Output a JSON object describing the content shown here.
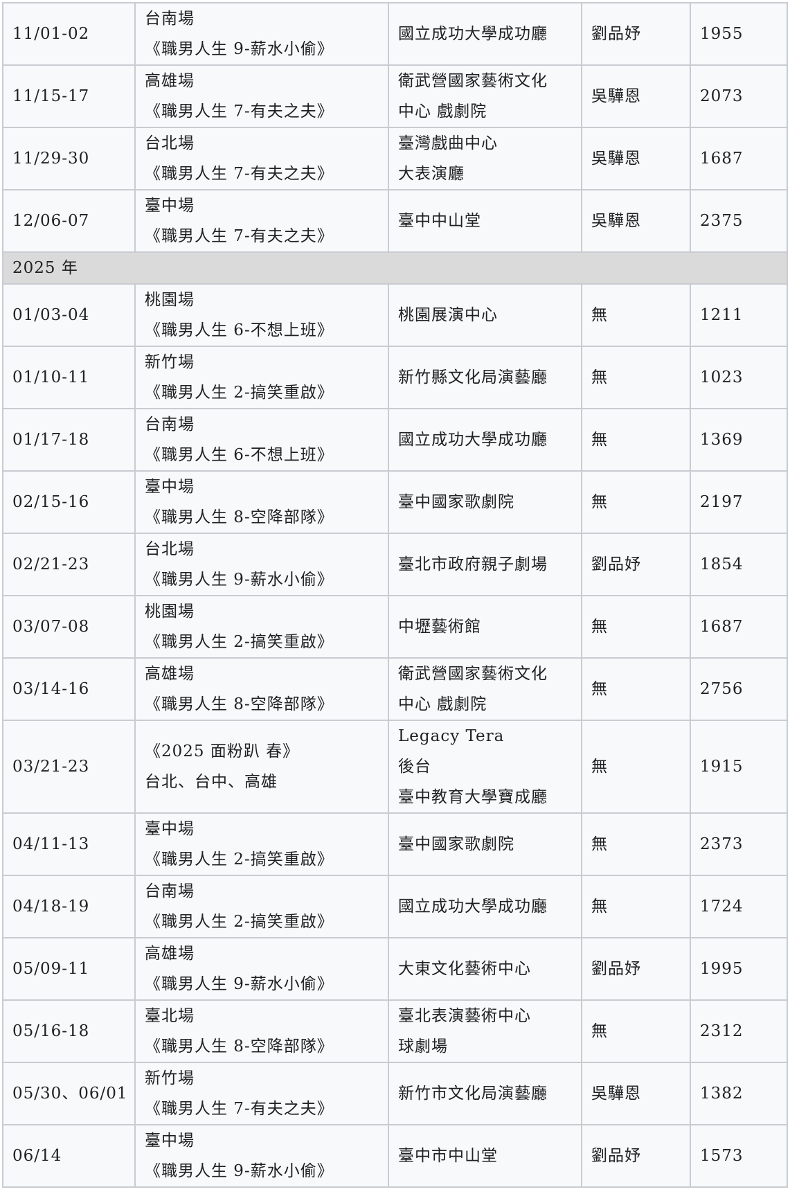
{
  "table": {
    "rows": [
      {
        "cells": [
          [
            "11/01-02"
          ],
          [
            "台南場",
            "《職男人生 9-薪水小偷》"
          ],
          [
            "國立成功大學成功廳"
          ],
          [
            "劉品妤"
          ],
          [
            1955
          ]
        ]
      },
      {
        "cells": [
          [
            "11/15-17"
          ],
          [
            "高雄場",
            "《職男人生 7-有夫之夫》"
          ],
          [
            "衛武營國家藝術文化",
            "中心 戲劇院"
          ],
          [
            "吳驊恩"
          ],
          [
            2073
          ]
        ]
      },
      {
        "cells": [
          [
            "11/29-30"
          ],
          [
            "台北場",
            "《職男人生 7-有夫之夫》"
          ],
          [
            "臺灣戲曲中心",
            "大表演廳"
          ],
          [
            "吳驊恩"
          ],
          [
            1687
          ]
        ]
      },
      {
        "cells": [
          [
            "12/06-07"
          ],
          [
            "臺中場",
            "《職男人生 7-有夫之夫》"
          ],
          [
            "臺中中山堂"
          ],
          [
            "吳驊恩"
          ],
          [
            2375
          ]
        ]
      },
      {
        "section": "2025 年"
      },
      {
        "cells": [
          [
            "01/03-04"
          ],
          [
            "桃園場",
            "《職男人生 6-不想上班》"
          ],
          [
            "桃園展演中心"
          ],
          [
            "無"
          ],
          [
            1211
          ]
        ]
      },
      {
        "cells": [
          [
            "01/10-11"
          ],
          [
            "新竹場",
            "《職男人生 2-搞笑重啟》"
          ],
          [
            "新竹縣文化局演藝廳"
          ],
          [
            "無"
          ],
          [
            1023
          ]
        ]
      },
      {
        "cells": [
          [
            "01/17-18"
          ],
          [
            "台南場",
            "《職男人生 6-不想上班》"
          ],
          [
            "國立成功大學成功廳"
          ],
          [
            "無"
          ],
          [
            1369
          ]
        ]
      },
      {
        "cells": [
          [
            "02/15-16"
          ],
          [
            "臺中場",
            "《職男人生 8-空降部隊》"
          ],
          [
            "臺中國家歌劇院"
          ],
          [
            "無"
          ],
          [
            2197
          ]
        ]
      },
      {
        "cells": [
          [
            "02/21-23"
          ],
          [
            "台北場",
            "《職男人生 9-薪水小偷》"
          ],
          [
            "臺北市政府親子劇場"
          ],
          [
            "劉品妤"
          ],
          [
            1854
          ]
        ]
      },
      {
        "cells": [
          [
            "03/07-08"
          ],
          [
            "桃園場",
            "《職男人生 2-搞笑重啟》"
          ],
          [
            "中壢藝術館"
          ],
          [
            "無"
          ],
          [
            1687
          ]
        ]
      },
      {
        "cells": [
          [
            "03/14-16"
          ],
          [
            "高雄場",
            "《職男人生 8-空降部隊》"
          ],
          [
            "衛武營國家藝術文化",
            "中心 戲劇院"
          ],
          [
            "無"
          ],
          [
            2756
          ]
        ]
      },
      {
        "cells": [
          [
            "03/21-23"
          ],
          [
            "《2025 面粉趴 春》",
            "台北、台中、高雄"
          ],
          [
            "Legacy Tera",
            "後台",
            "臺中教育大學寶成廳"
          ],
          [
            "無"
          ],
          [
            1915
          ]
        ]
      },
      {
        "cells": [
          [
            "04/11-13"
          ],
          [
            "臺中場",
            "《職男人生 2-搞笑重啟》"
          ],
          [
            "臺中國家歌劇院"
          ],
          [
            "無"
          ],
          [
            2373
          ]
        ]
      },
      {
        "cells": [
          [
            "04/18-19"
          ],
          [
            "台南場",
            "《職男人生 2-搞笑重啟》"
          ],
          [
            "國立成功大學成功廳"
          ],
          [
            "無"
          ],
          [
            1724
          ]
        ]
      },
      {
        "cells": [
          [
            "05/09-11"
          ],
          [
            "高雄場",
            "《職男人生 9-薪水小偷》"
          ],
          [
            "大東文化藝術中心"
          ],
          [
            "劉品妤"
          ],
          [
            1995
          ]
        ]
      },
      {
        "cells": [
          [
            "05/16-18"
          ],
          [
            "臺北場",
            "《職男人生 8-空降部隊》"
          ],
          [
            "臺北表演藝術中心",
            "球劇場"
          ],
          [
            "無"
          ],
          [
            2312
          ]
        ]
      },
      {
        "cells": [
          [
            "05/30、06/01"
          ],
          [
            "新竹場",
            "《職男人生 7-有夫之夫》"
          ],
          [
            "新竹市文化局演藝廳"
          ],
          [
            "吳驊恩"
          ],
          [
            1382
          ]
        ]
      },
      {
        "cells": [
          [
            "06/14"
          ],
          [
            "臺中場",
            "《職男人生 9-薪水小偷》"
          ],
          [
            "臺中市中山堂"
          ],
          [
            "劉品妤"
          ],
          [
            1573
          ]
        ]
      }
    ]
  }
}
